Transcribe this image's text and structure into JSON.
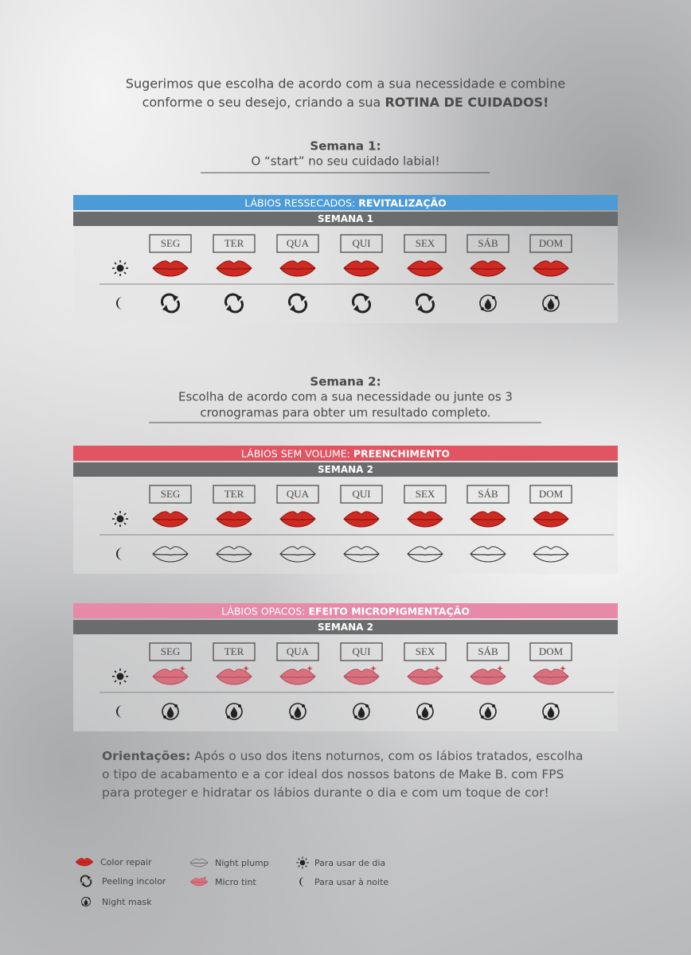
{
  "intro": {
    "line1": "Sugerimos que escolha de acordo com a sua necessidade e combine",
    "line2": "conforme o seu desejo, criando a sua",
    "line2_bold": "ROTINA DE CUIDADOS!"
  },
  "week1_heading": {
    "title": "Semana 1:",
    "subtitle": "O “start” no seu cuidado labial!"
  },
  "week2_heading": {
    "title": "Semana 2:",
    "line1": "Escolha de acordo com a sua necessidade ou junte os 3",
    "line2": "cronogramas para obter um resultado completo."
  },
  "tables": [
    {
      "title": "LÁBIOS RESSECADOS:",
      "title_bold": "REVITALIZAÇÃO",
      "week": "SEMANA 1",
      "days": [
        "SEG",
        "TER",
        "QUA",
        "QUI",
        "SEX",
        "SÁB",
        "DOM"
      ]
    },
    {
      "title": "LÁBIOS SEM VOLUME:",
      "title_bold": "PREENCHIMENTO",
      "week": "SEMANA 2",
      "days": [
        "SEG",
        "TER",
        "QUA",
        "QUI",
        "SEX",
        "SÁB",
        "DOM"
      ]
    },
    {
      "title": "LÁBIOS OPACOS:",
      "title_bold": "EFEITO MICROPIGMENTAÇÃO",
      "week": "SEMANA 2",
      "days": [
        "SEG",
        "TER",
        "QUA",
        "QUI",
        "SEX",
        "SÁB",
        "DOM"
      ]
    }
  ],
  "guidance": {
    "label": "Orientações:",
    "text": "Após o uso dos itens noturnos, com os lábios tratados, escolha o tipo de acabamento e a cor ideal dos nossos batons de Make B. com FPS para proteger e hidratar os lábios durante o dia e com um toque de cor!"
  },
  "legend": [
    "Color repair",
    "Peeling incolor",
    "Night mask",
    "Night plump",
    "Micro tint",
    "Para usar de dia",
    "Para usar à noite"
  ]
}
